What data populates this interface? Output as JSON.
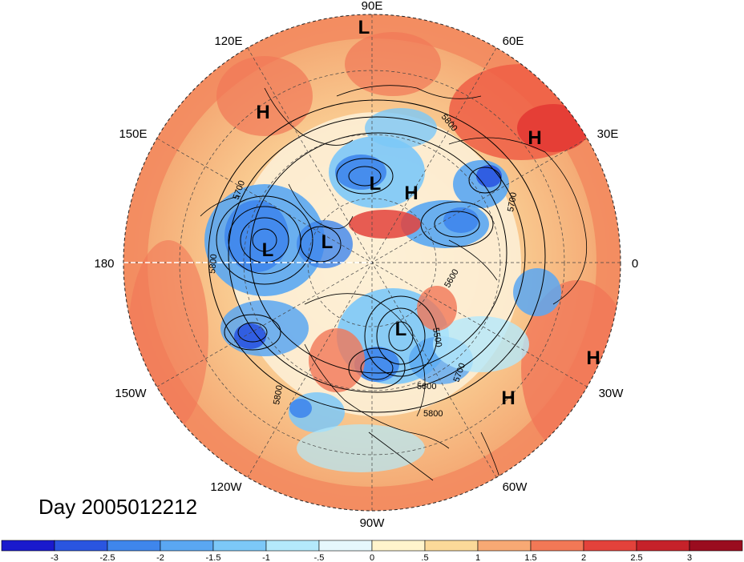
{
  "title_label": "Day 2005012212",
  "longitude_labels": {
    "top": "90E",
    "top_left": "120E",
    "top_right": "60E",
    "upper_left": "150E",
    "upper_right": "30E",
    "left": "180",
    "right": "0",
    "lower_left": "150W",
    "lower_right": "30W",
    "bottom_left": "120W",
    "bottom_right": "60W",
    "bottom": "90W"
  },
  "pressure_centers": [
    {
      "type": "L",
      "near": "90E top"
    },
    {
      "type": "H",
      "near": "120E"
    },
    {
      "type": "H",
      "near": "30E"
    },
    {
      "type": "L",
      "near": "central Asia"
    },
    {
      "type": "H",
      "near": "central Asia"
    },
    {
      "type": "L",
      "near": "east Siberia"
    },
    {
      "type": "L",
      "near": "Bering region"
    },
    {
      "type": "L",
      "near": "Canada"
    },
    {
      "type": "H",
      "near": "east Atlantic"
    },
    {
      "type": "H",
      "near": "central Atlantic"
    }
  ],
  "contour_labels": [
    "5800",
    "5700",
    "5800",
    "5700",
    "5600",
    "5500",
    "5700",
    "5600",
    "5800",
    "5800"
  ],
  "colorbar": {
    "ticks": [
      "-3",
      "-2.5",
      "-2",
      "-1.5",
      "-1",
      "-.5",
      "0",
      ".5",
      "1",
      "1.5",
      "2",
      "2.5",
      "3"
    ],
    "colors": [
      "#1a1acd",
      "#2a55e0",
      "#3f86ec",
      "#5aa7f2",
      "#7cc8f8",
      "#b4e9fb",
      "#e6f8fd",
      "#fff4cc",
      "#fbd999",
      "#f8a974",
      "#f27856",
      "#e3423b",
      "#c6222a",
      "#9a0c1f"
    ]
  }
}
